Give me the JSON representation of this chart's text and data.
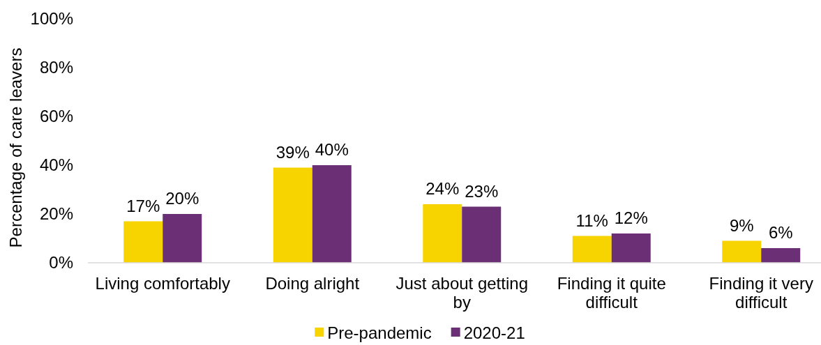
{
  "chart_data": {
    "type": "bar",
    "ylabel": "Percentage of care leavers",
    "categories": [
      "Living comfortably",
      "Doing alright",
      "Just about getting by",
      "Finding it quite difficult",
      "Finding it very difficult"
    ],
    "series": [
      {
        "name": "Pre-pandemic",
        "color": "#f7d400",
        "values": [
          17,
          39,
          24,
          11,
          9
        ],
        "value_labels": [
          "17%",
          "39%",
          "24%",
          "11%",
          "9%"
        ]
      },
      {
        "name": "2020-21",
        "color": "#6b2f76",
        "values": [
          20,
          40,
          23,
          12,
          6
        ],
        "value_labels": [
          "20%",
          "40%",
          "23%",
          "12%",
          "6%"
        ]
      }
    ],
    "ylim": [
      0,
      100
    ],
    "yticks": [
      {
        "value": 0,
        "label": "0%"
      },
      {
        "value": 20,
        "label": "20%"
      },
      {
        "value": 40,
        "label": "40%"
      },
      {
        "value": 60,
        "label": "60%"
      },
      {
        "value": 80,
        "label": "80%"
      },
      {
        "value": 100,
        "label": "100%"
      }
    ],
    "legend": "bottom"
  }
}
